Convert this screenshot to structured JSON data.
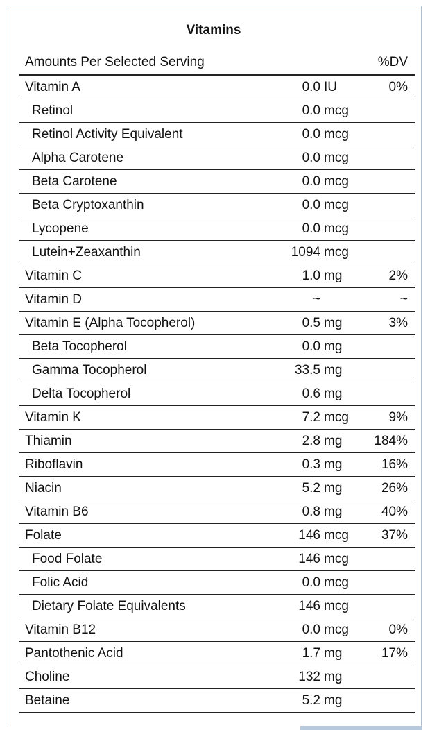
{
  "title": "Vitamins",
  "header": {
    "label": "Amounts Per Selected Serving",
    "dv": "%DV"
  },
  "rows": [
    {
      "name": "Vitamin A",
      "amount": "0.0",
      "unit": "IU",
      "dv": "0%"
    },
    {
      "name": "Retinol",
      "amount": "0.0",
      "unit": "mcg",
      "sub": true
    },
    {
      "name": "Retinol Activity Equivalent",
      "amount": "0.0",
      "unit": "mcg",
      "sub": true
    },
    {
      "name": "Alpha Carotene",
      "amount": "0.0",
      "unit": "mcg",
      "sub": true
    },
    {
      "name": "Beta Carotene",
      "amount": "0.0",
      "unit": "mcg",
      "sub": true
    },
    {
      "name": "Beta Cryptoxanthin",
      "amount": "0.0",
      "unit": "mcg",
      "sub": true
    },
    {
      "name": "Lycopene",
      "amount": "0.0",
      "unit": "mcg",
      "sub": true
    },
    {
      "name": "Lutein+Zeaxanthin",
      "amount": "1094",
      "unit": "mcg",
      "sub": true
    },
    {
      "name": "Vitamin C",
      "amount": "1.0",
      "unit": "mg",
      "dv": "2%"
    },
    {
      "name": "Vitamin D",
      "amount": "~",
      "dv": "~"
    },
    {
      "name": "Vitamin E (Alpha Tocopherol)",
      "amount": "0.5",
      "unit": "mg",
      "dv": "3%"
    },
    {
      "name": "Beta Tocopherol",
      "amount": "0.0",
      "unit": "mg",
      "sub": true
    },
    {
      "name": "Gamma Tocopherol",
      "amount": "33.5",
      "unit": "mg",
      "sub": true
    },
    {
      "name": "Delta Tocopherol",
      "amount": "0.6",
      "unit": "mg",
      "sub": true
    },
    {
      "name": "Vitamin K",
      "amount": "7.2",
      "unit": "mcg",
      "dv": "9%"
    },
    {
      "name": "Thiamin",
      "amount": "2.8",
      "unit": "mg",
      "dv": "184%"
    },
    {
      "name": "Riboflavin",
      "amount": "0.3",
      "unit": "mg",
      "dv": "16%"
    },
    {
      "name": "Niacin",
      "amount": "5.2",
      "unit": "mg",
      "dv": "26%"
    },
    {
      "name": "Vitamin B6",
      "amount": "0.8",
      "unit": "mg",
      "dv": "40%"
    },
    {
      "name": "Folate",
      "amount": "146",
      "unit": "mcg",
      "dv": "37%"
    },
    {
      "name": "Food Folate",
      "amount": "146",
      "unit": "mcg",
      "sub": true
    },
    {
      "name": "Folic Acid",
      "amount": "0.0",
      "unit": "mcg",
      "sub": true
    },
    {
      "name": "Dietary Folate Equivalents",
      "amount": "146",
      "unit": "mcg",
      "sub": true
    },
    {
      "name": "Vitamin B12",
      "amount": "0.0",
      "unit": "mcg",
      "dv": "0%"
    },
    {
      "name": "Pantothenic Acid",
      "amount": "1.7",
      "unit": "mg",
      "dv": "17%"
    },
    {
      "name": "Choline",
      "amount": "132",
      "unit": "mg"
    },
    {
      "name": "Betaine",
      "amount": "5.2",
      "unit": "mg"
    }
  ]
}
